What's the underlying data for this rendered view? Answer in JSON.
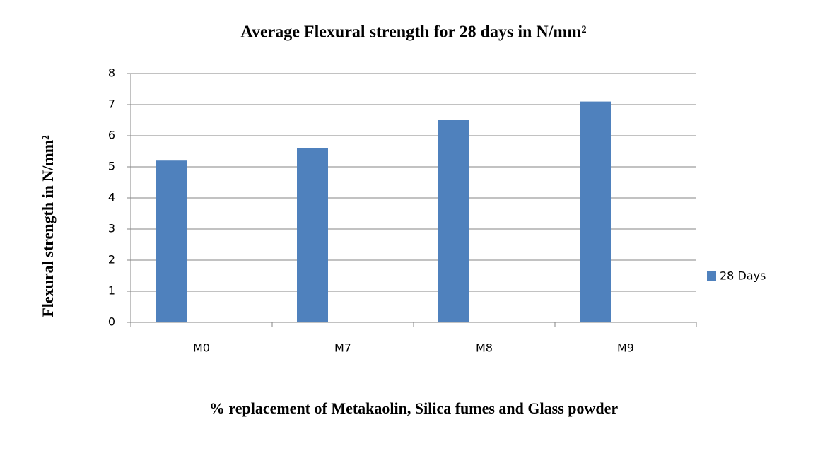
{
  "chart_data": {
    "type": "bar",
    "title": "Average Flexural strength for 28 days in N/mm²",
    "x_label": "% replacement of Metakaolin, Silica fumes and Glass powder",
    "y_label": "Flexural strength in N/mm²",
    "categories": [
      "M0",
      "M7",
      "M8",
      "M9"
    ],
    "series": [
      {
        "name": "28 Days",
        "color": "#4f81bd",
        "values": [
          5.2,
          5.6,
          6.5,
          7.1
        ]
      }
    ],
    "ylim": [
      0,
      8
    ],
    "yticks": [
      0,
      1,
      2,
      3,
      4,
      5,
      6,
      7,
      8
    ],
    "grid": true,
    "legend": "right"
  }
}
